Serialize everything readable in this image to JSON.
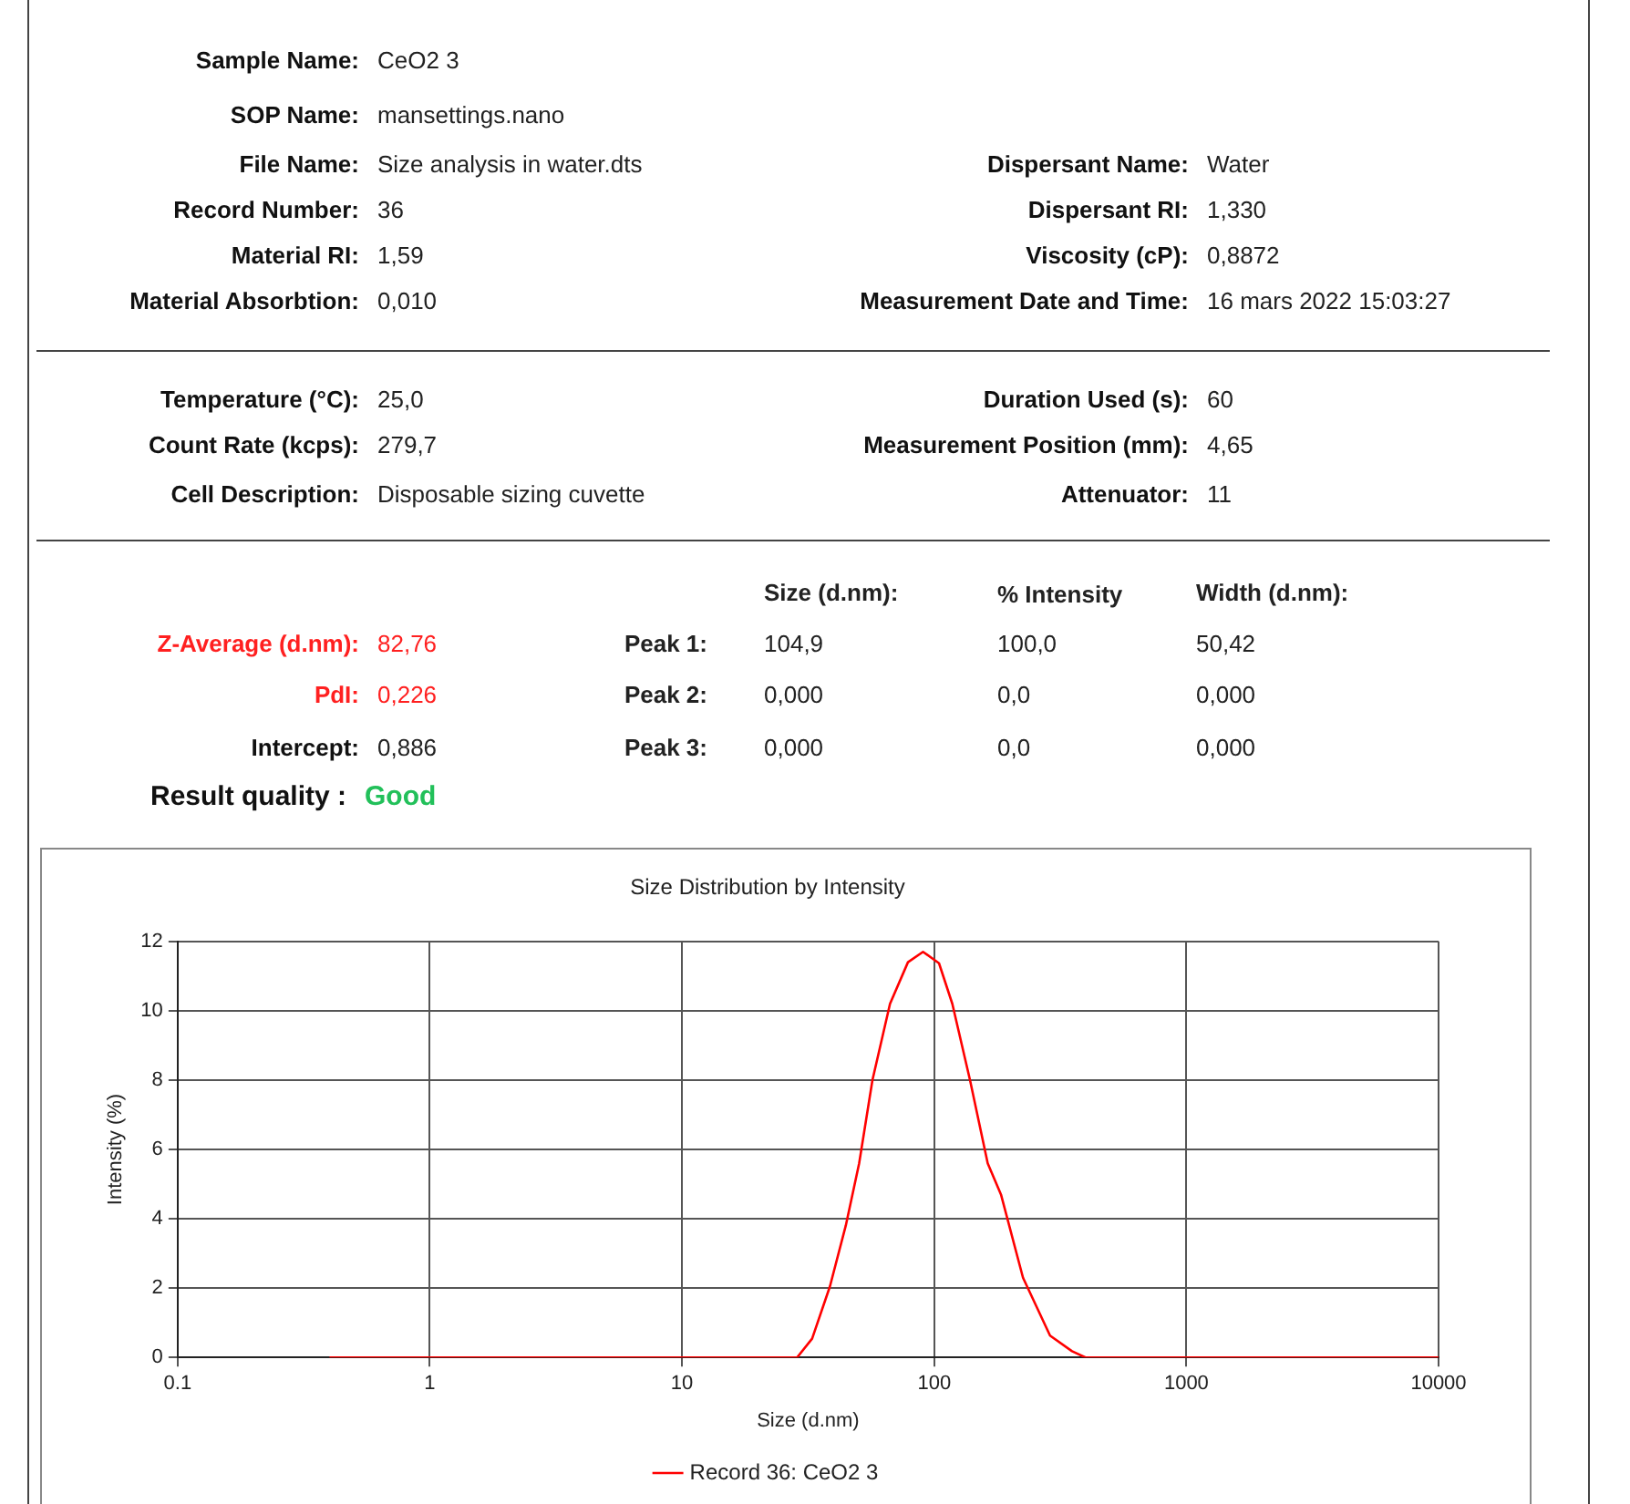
{
  "chart_data": {
    "type": "line",
    "title": "Size Distribution by Intensity",
    "xlabel": "Size (d.nm)",
    "ylabel": "Intensity (%)",
    "annotations": [
      "Sample Name: CeO2 3",
      "SOP Name: mansettings.nano",
      "File Name: Size analysis in water.dts",
      "Dispersant Name: Water",
      "Record Number: 36",
      "Dispersant RI: 1,330",
      "Material RI: 1,59",
      "Viscosity (cP): 0,8872",
      "Material Absorbtion: 0,010",
      "Measurement Date and Time: 16 mars 2022 15:03:27",
      "Temperature (°C): 25,0",
      "Duration Used (s): 60",
      "Count Rate (kcps): 279,7",
      "Measurement Position (mm): 4,65",
      "Cell Description: Disposable sizing cuvette",
      "Attenuator: 11",
      "Size (d.nm):",
      "% Intensity",
      "Width (d.nm):",
      "Z-Average (d.nm): 82,76",
      "Peak 1:",
      "104,9",
      "100,0",
      "50,42",
      "PdI: 0,226",
      "Peak 2:",
      "0,000",
      "0,0",
      "0,000",
      "Intercept: 0,886",
      "Peak 3:",
      "0,000",
      "0,0",
      "0,000",
      "Result quality : Good"
    ],
    "x": [
      0.4,
      28.6,
      32.8,
      38.6,
      44.6,
      50.4,
      56.9,
      66.8,
      78.7,
      90.3,
      104.5,
      118,
      138.7,
      163,
      184,
      225,
      288,
      352,
      398,
      10000
    ],
    "series": [
      {
        "name": "Record 36: CeO2 3",
        "color": "#ff0000",
        "values": [
          0,
          0,
          0.54,
          2.05,
          3.8,
          5.6,
          8.0,
          10.2,
          11.4,
          11.7,
          11.37,
          10.2,
          8.0,
          5.6,
          4.7,
          2.3,
          0.63,
          0.18,
          0,
          0
        ]
      }
    ],
    "xlim": [
      0.1,
      10000
    ],
    "xticks": [
      0.1,
      1,
      10,
      100,
      1000,
      10000
    ],
    "ylim": [
      0,
      12
    ],
    "yticks": [
      0,
      2,
      4,
      6,
      8,
      10,
      12
    ],
    "log": "x",
    "grid": true,
    "legend": "bottom",
    "marker": "none",
    "line_style": "solid"
  }
}
